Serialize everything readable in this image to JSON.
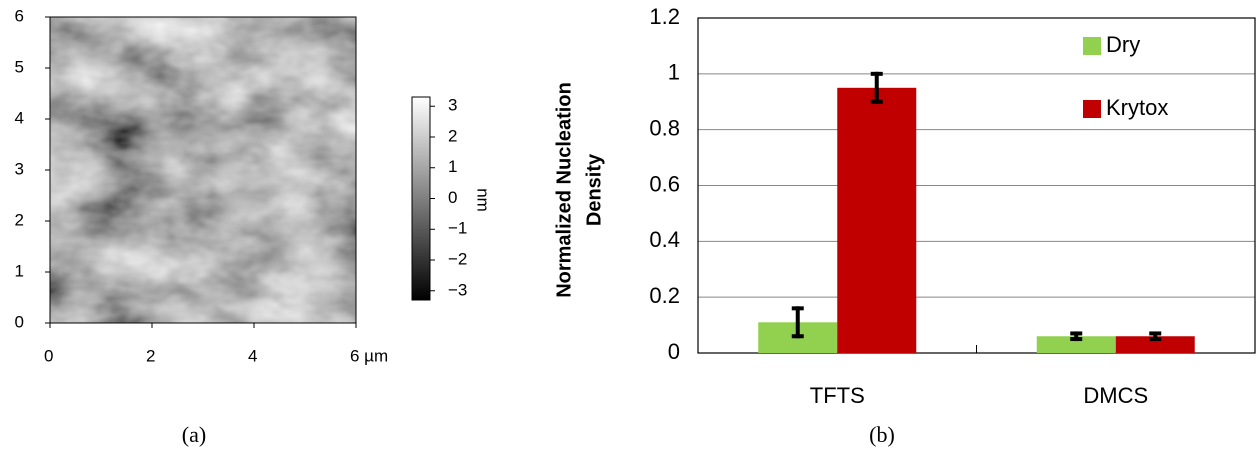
{
  "chart_data": [
    {
      "type": "image",
      "xlim": [
        0,
        6
      ],
      "xticks": [
        0,
        2,
        4,
        {
          "value": 6,
          "label": "6 µm"
        }
      ],
      "ylim": [
        0,
        6
      ],
      "yticks": [
        0,
        1,
        2,
        3,
        4,
        5,
        6
      ],
      "colorbar": {
        "label": "nm",
        "lim": [
          -3.3,
          3.3
        ],
        "ticks": [
          3,
          2,
          1,
          0,
          {
            "value": -1,
            "label": "−1"
          },
          {
            "value": -2,
            "label": "−2"
          },
          {
            "value": -3,
            "label": "−3"
          }
        ]
      },
      "caption": "(a)"
    },
    {
      "type": "bar",
      "ylabel": [
        "Normalized Nucleation",
        "Density"
      ],
      "categories": [
        "TFTS",
        "DMCS"
      ],
      "series": [
        {
          "name": "Dry",
          "color": "#92d050",
          "values": [
            0.11,
            0.06
          ],
          "errors": [
            0.05,
            0.01
          ]
        },
        {
          "name": "Krytox",
          "color": "#c00000",
          "values": [
            0.95,
            0.06
          ],
          "errors": [
            0.05,
            0.01
          ]
        }
      ],
      "ylim": [
        0,
        1.2
      ],
      "yticks": [
        0,
        0.2,
        0.4,
        0.6,
        0.8,
        1,
        1.2
      ],
      "grid": true,
      "legend": "upper right",
      "caption": "(b)"
    }
  ]
}
